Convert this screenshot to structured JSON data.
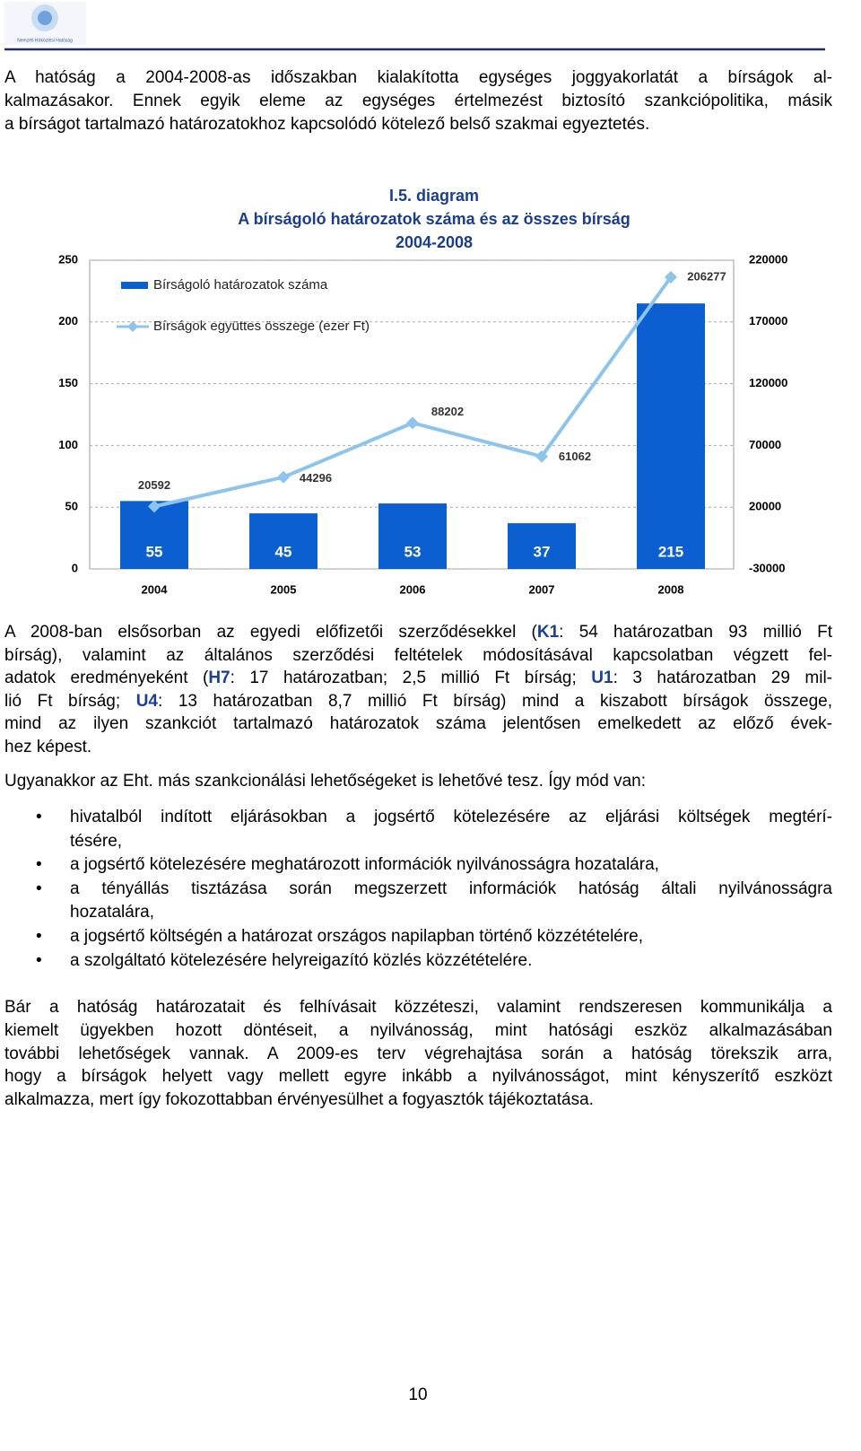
{
  "header": {
    "logo_text": "Nemzeti Hírközlési Hatóság"
  },
  "intro": [
    "A hatóság a 2004-2008-as időszakban kialakította egységes joggyakorlatát a bírságok al-",
    "kalmazásakor. Ennek egyik eleme az egységes értelmezést biztosító szankciópolitika, másik",
    "a bírságot tartalmazó határozatokhoz kapcsolódó kötelező belső szakmai egyeztetés."
  ],
  "chart_data": {
    "type": "bar",
    "title": [
      "I.5. diagram",
      "A bírságoló határozatok száma és az összes bírság",
      "2004-2008"
    ],
    "categories": [
      "2004",
      "2005",
      "2006",
      "2007",
      "2008"
    ],
    "series": [
      {
        "name": "Bírságoló határozatok száma",
        "type": "bar",
        "color": "#0b5fd0",
        "values": [
          55,
          45,
          53,
          37,
          215
        ]
      },
      {
        "name": "Bírságok együttes összege (ezer Ft)",
        "type": "line",
        "axis": "y2",
        "color": "#8cc4ee",
        "values": [
          20592,
          44296,
          88202,
          61062,
          206277
        ]
      }
    ],
    "ylim": [
      0,
      250
    ],
    "yticks": [
      0,
      50,
      100,
      150,
      200,
      250
    ],
    "y2lim": [
      -30000,
      220000
    ],
    "y2ticks": [
      -30000,
      20000,
      70000,
      120000,
      170000,
      220000
    ],
    "grid": true,
    "legend": "upper left"
  },
  "findings": [
    [
      "A 2008-ban elsősorban az egyedi előfizetői szerződésekkel (",
      "K1",
      ": 54 határozatban 93 millió Ft"
    ],
    [
      "bírság), valamint az általános szerződési feltételek módosításával kapcsolatban végzett fel-"
    ],
    [
      "adatok eredményeként (",
      "H7",
      ": 17 határozatban; 2,5 millió Ft bírság; ",
      "U1",
      ": 3 határozatban 29 mil-"
    ],
    [
      "lió Ft bírság; ",
      "U4",
      ": 13 határozatban 8,7 millió Ft bírság) mind a kiszabott bírságok összege,"
    ],
    [
      "mind az ilyen szankciót tartalmazó határozatok száma jelentősen emelkedett az előző évek-"
    ],
    [
      "hez képest."
    ]
  ],
  "options_intro": "Ugyanakkor az Eht. más szankcionálási lehetőségeket is lehetővé tesz. Így mód van:",
  "options": [
    [
      "hivatalból indított eljárásokban a jogsértő kötelezésére az eljárási költségek megtérí-",
      "tésére,"
    ],
    [
      "a jogsértő kötelezésére meghatározott információk nyilvánosságra hozatalára,"
    ],
    [
      "a tényállás tisztázása során megszerzett információk hatóság általi nyilvánosságra",
      "hozatalára,"
    ],
    [
      "a jogsértő költségén a határozat országos napilapban történő közzétételére,"
    ],
    [
      "a szolgáltató kötelezésére helyreigazító közlés közzétételére."
    ]
  ],
  "conclusion": [
    "Bár a hatóság határozatait és felhívásait közzéteszi, valamint rendszeresen kommunikálja a",
    "kiemelt ügyekben hozott döntéseit, a nyilvánosság, mint hatósági eszköz alkalmazásában",
    "további lehetőségek vannak. A 2009-es terv végrehajtása során a hatóság törekszik arra,",
    "hogy a bírságok helyett vagy mellett egyre inkább a nyilvánosságot, mint kényszerítő eszközt",
    "alkalmazza, mert így fokozottabban érvényesülhet a fogyasztók tájékoztatása."
  ],
  "page_number": "10"
}
